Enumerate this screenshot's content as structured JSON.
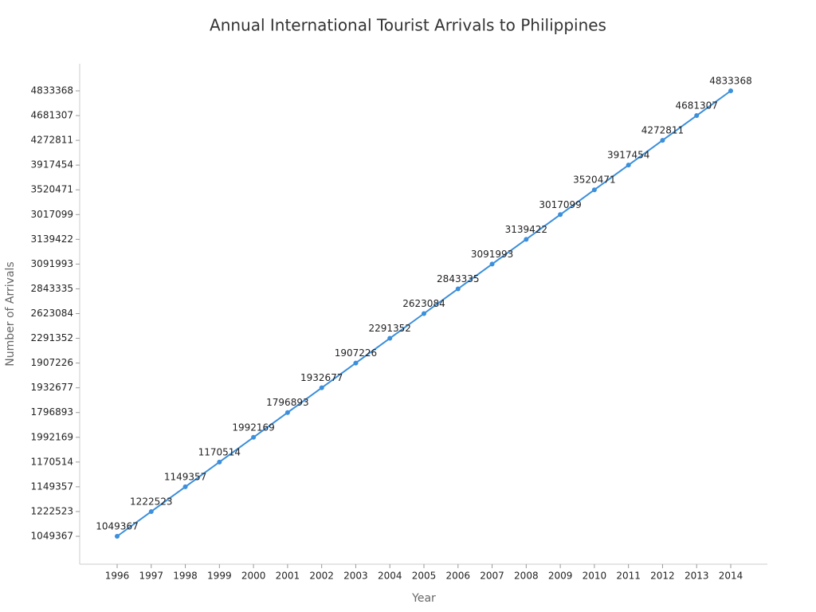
{
  "chart_data": {
    "type": "line",
    "title": "Annual International Tourist Arrivals to Philippines",
    "x_label": "Year",
    "y_label": "Number of Arrivals",
    "y_scale": "category",
    "categories": [
      "1996",
      "1997",
      "1998",
      "1999",
      "2000",
      "2001",
      "2002",
      "2003",
      "2004",
      "2005",
      "2006",
      "2007",
      "2008",
      "2009",
      "2010",
      "2011",
      "2012",
      "2013",
      "2014"
    ],
    "values": [
      1049367,
      1222523,
      1149357,
      1170514,
      1992169,
      1796893,
      1932677,
      1907226,
      2291352,
      2623084,
      2843335,
      3091993,
      3139422,
      3017099,
      3520471,
      3917454,
      4272811,
      4681307,
      4833368
    ],
    "color": "#3b8fdb",
    "data_labels": true
  }
}
